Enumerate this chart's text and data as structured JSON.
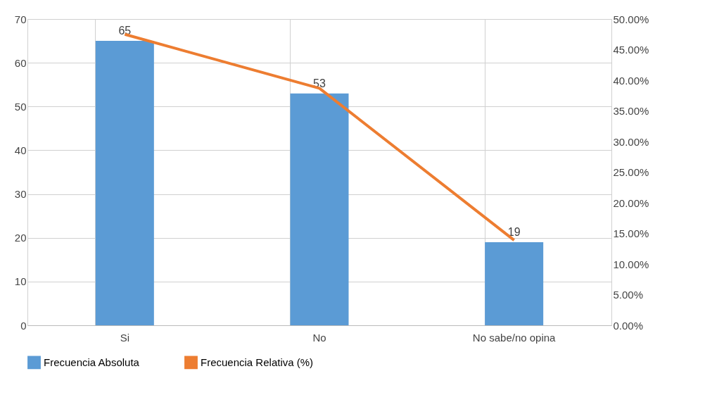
{
  "chart_data": {
    "type": "bar",
    "categories": [
      "Si",
      "No",
      "No sabe/no opina"
    ],
    "series": [
      {
        "name": "Frecuencia Absoluta",
        "color": "#5b9bd5",
        "values": [
          65,
          53,
          19
        ],
        "value_labels": [
          "65",
          "53",
          "19"
        ]
      },
      {
        "name": "Frecuencia Relativa (%)",
        "type": "line",
        "axis": "y2",
        "color": "#ed7d31",
        "values": [
          47.5,
          38.7,
          13.9
        ]
      }
    ],
    "ylim": [
      0,
      70
    ],
    "yticks": [
      0,
      10,
      20,
      30,
      40,
      50,
      60,
      70
    ],
    "y2lim": [
      0,
      50
    ],
    "y2ticks": [
      {
        "value": 0,
        "label": "0.00%"
      },
      {
        "value": 5,
        "label": "5.00%"
      },
      {
        "value": 10,
        "label": "10.00%"
      },
      {
        "value": 15,
        "label": "15.00%"
      },
      {
        "value": 20,
        "label": "20.00%"
      },
      {
        "value": 25,
        "label": "25.00%"
      },
      {
        "value": 30,
        "label": "30.00%"
      },
      {
        "value": 35,
        "label": "35.00%"
      },
      {
        "value": 40,
        "label": "40.00%"
      },
      {
        "value": 45,
        "label": "45.00%"
      },
      {
        "value": 50,
        "label": "50.00%"
      }
    ],
    "grid": true,
    "legend": "bottom",
    "marker": "none"
  }
}
